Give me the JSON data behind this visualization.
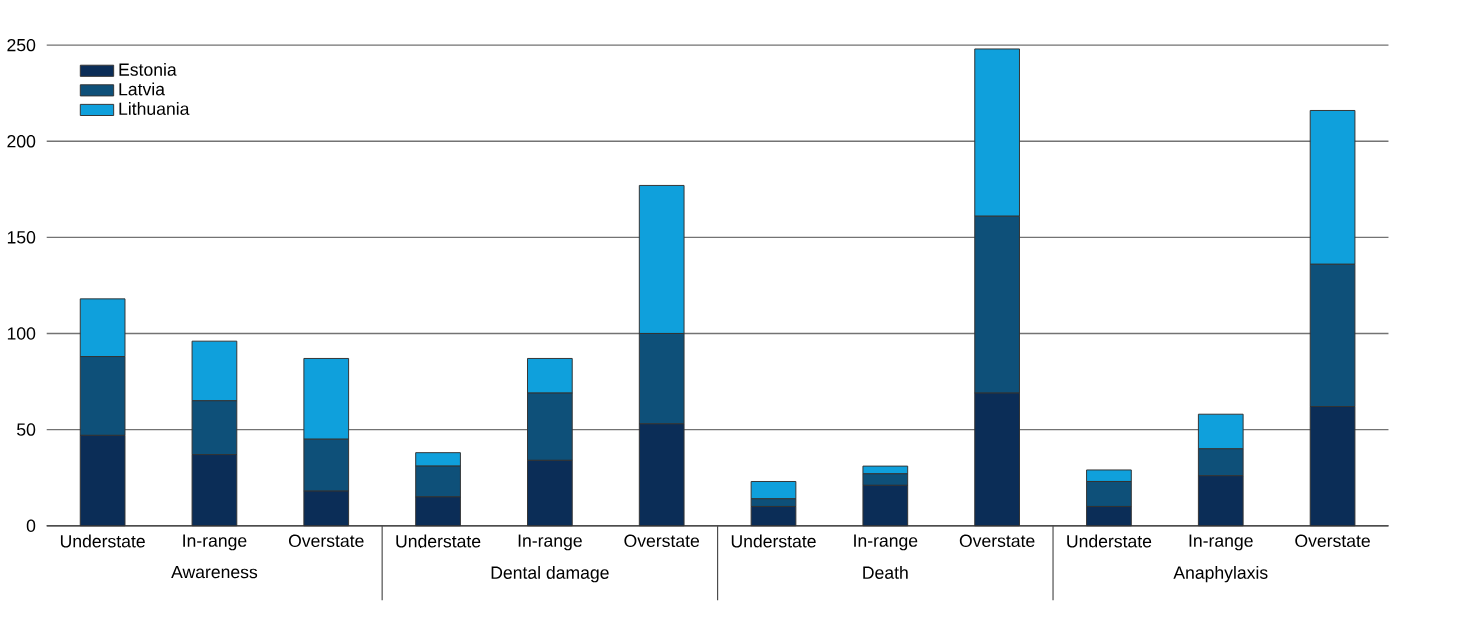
{
  "chart_data": {
    "type": "bar",
    "stacked": true,
    "categories": [
      "Understate",
      "In-range",
      "Overstate",
      "Understate",
      "In-range",
      "Overstate",
      "Understate",
      "In-range",
      "Overstate",
      "Understate",
      "In-range",
      "Overstate"
    ],
    "series": [
      {
        "name": "Estonia",
        "color": "#0b2d57",
        "values": [
          47,
          37,
          18,
          15,
          34,
          53,
          10,
          21,
          69,
          10,
          26,
          62
        ]
      },
      {
        "name": "Latvia",
        "color": "#0e5079",
        "values": [
          41,
          28,
          27,
          16,
          35,
          47,
          4,
          6,
          92,
          13,
          14,
          74
        ]
      },
      {
        "name": "Lithuania",
        "color": "#0fa0dc",
        "values": [
          30,
          31,
          42,
          7,
          18,
          77,
          9,
          4,
          87,
          6,
          18,
          80
        ]
      }
    ],
    "annotations": [
      "Awareness",
      "Dental damage",
      "Death",
      "Anaphylaxis"
    ],
    "ylim": [
      0,
      250
    ],
    "yticks": [
      0,
      50,
      100,
      150,
      200,
      250
    ],
    "grid": "y",
    "legend": "top left"
  }
}
